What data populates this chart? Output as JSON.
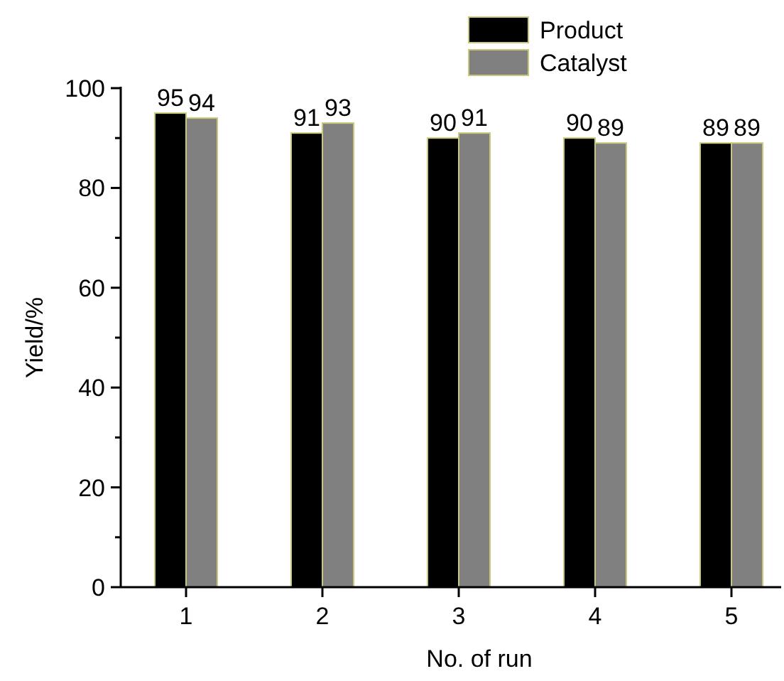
{
  "chart_data": {
    "type": "bar",
    "xlabel": "No. of run",
    "ylabel": "Yield/%",
    "categories": [
      "1",
      "2",
      "3",
      "4",
      "5"
    ],
    "series": [
      {
        "name": "Product",
        "color": "#000000",
        "values": [
          95,
          91,
          90,
          90,
          89
        ]
      },
      {
        "name": "Catalyst",
        "color": "#808080",
        "values": [
          94,
          93,
          91,
          89,
          89
        ]
      }
    ],
    "ylim": [
      0,
      100
    ],
    "yticks": [
      0,
      {
        "value": 10,
        "label": null
      },
      20,
      {
        "value": 30,
        "label": null
      },
      40,
      {
        "value": 50,
        "label": null
      },
      60,
      {
        "value": 70,
        "label": null
      },
      80,
      {
        "value": 90,
        "label": null
      },
      100
    ],
    "data_labels": true,
    "legend": "top right",
    "grid": false
  }
}
